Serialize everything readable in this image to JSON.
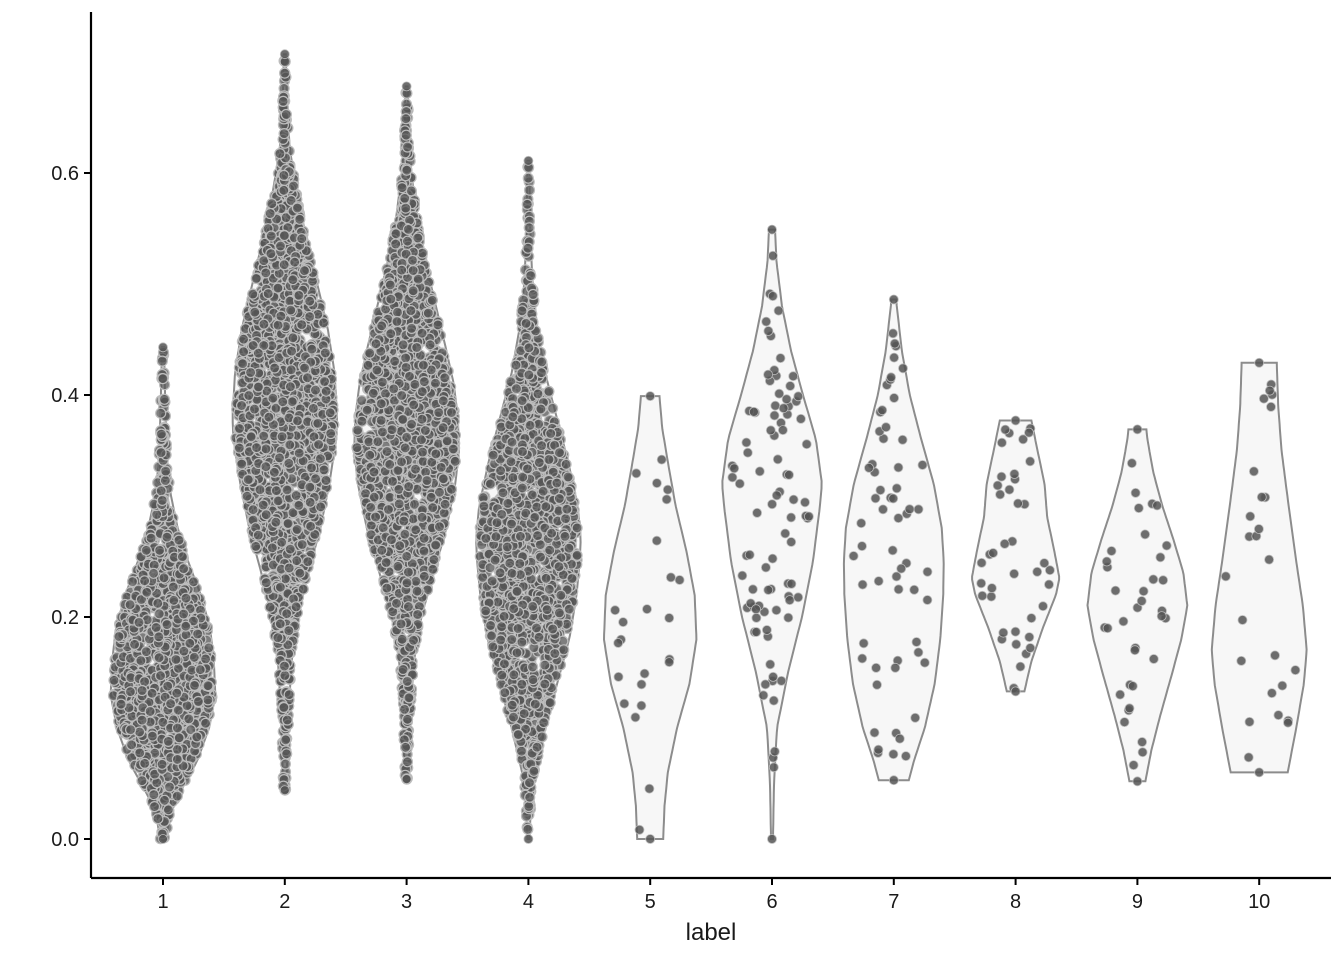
{
  "chart_data": {
    "type": "violin",
    "xlabel": "label",
    "ylabel": "",
    "categories": [
      "1",
      "2",
      "3",
      "4",
      "5",
      "6",
      "7",
      "8",
      "9",
      "10"
    ],
    "y_ticks": [
      "0.0",
      "0.2",
      "0.4",
      "0.6"
    ],
    "y_tick_values": [
      0.0,
      0.2,
      0.4,
      0.6
    ],
    "ylim": [
      -0.035,
      0.745
    ],
    "grid": false,
    "legend": "none",
    "colors": {
      "violin_fill": "#f7f7f7",
      "violin_stroke": "#8c8c8c",
      "point_fill": "#555555",
      "point_stroke": "#bdbdbd",
      "axis": "#000000"
    },
    "violins": [
      {
        "label": "1",
        "min": 0.0,
        "max": 0.443,
        "n": 1400,
        "max_half_width": 0.43,
        "profile": [
          [
            0.0,
            0.06
          ],
          [
            0.02,
            0.12
          ],
          [
            0.04,
            0.3
          ],
          [
            0.07,
            0.65
          ],
          [
            0.1,
            0.88
          ],
          [
            0.13,
            1.0
          ],
          [
            0.16,
            0.97
          ],
          [
            0.19,
            0.9
          ],
          [
            0.22,
            0.72
          ],
          [
            0.25,
            0.48
          ],
          [
            0.28,
            0.28
          ],
          [
            0.31,
            0.15
          ],
          [
            0.34,
            0.08
          ],
          [
            0.38,
            0.05
          ],
          [
            0.42,
            0.03
          ],
          [
            0.443,
            0.02
          ]
        ]
      },
      {
        "label": "2",
        "min": 0.044,
        "max": 0.707,
        "n": 2800,
        "max_half_width": 0.43,
        "profile": [
          [
            0.044,
            0.03
          ],
          [
            0.08,
            0.05
          ],
          [
            0.12,
            0.08
          ],
          [
            0.16,
            0.13
          ],
          [
            0.2,
            0.25
          ],
          [
            0.24,
            0.45
          ],
          [
            0.28,
            0.68
          ],
          [
            0.32,
            0.85
          ],
          [
            0.36,
            0.98
          ],
          [
            0.38,
            1.0
          ],
          [
            0.42,
            0.95
          ],
          [
            0.46,
            0.82
          ],
          [
            0.5,
            0.62
          ],
          [
            0.54,
            0.42
          ],
          [
            0.58,
            0.24
          ],
          [
            0.62,
            0.1
          ],
          [
            0.65,
            0.05
          ],
          [
            0.68,
            0.03
          ],
          [
            0.707,
            0.02
          ]
        ]
      },
      {
        "label": "3",
        "min": 0.054,
        "max": 0.678,
        "n": 2600,
        "max_half_width": 0.43,
        "profile": [
          [
            0.054,
            0.03
          ],
          [
            0.08,
            0.05
          ],
          [
            0.12,
            0.08
          ],
          [
            0.16,
            0.14
          ],
          [
            0.2,
            0.28
          ],
          [
            0.24,
            0.52
          ],
          [
            0.28,
            0.76
          ],
          [
            0.32,
            0.93
          ],
          [
            0.35,
            1.0
          ],
          [
            0.38,
            0.98
          ],
          [
            0.41,
            0.9
          ],
          [
            0.44,
            0.76
          ],
          [
            0.48,
            0.56
          ],
          [
            0.52,
            0.36
          ],
          [
            0.56,
            0.2
          ],
          [
            0.6,
            0.09
          ],
          [
            0.64,
            0.04
          ],
          [
            0.678,
            0.02
          ]
        ]
      },
      {
        "label": "4",
        "min": 0.0,
        "max": 0.611,
        "n": 1600,
        "max_half_width": 0.43,
        "profile": [
          [
            0.0,
            0.02
          ],
          [
            0.03,
            0.05
          ],
          [
            0.06,
            0.12
          ],
          [
            0.1,
            0.32
          ],
          [
            0.14,
            0.55
          ],
          [
            0.18,
            0.78
          ],
          [
            0.22,
            0.92
          ],
          [
            0.25,
            0.98
          ],
          [
            0.27,
            1.0
          ],
          [
            0.3,
            0.94
          ],
          [
            0.34,
            0.76
          ],
          [
            0.38,
            0.54
          ],
          [
            0.42,
            0.32
          ],
          [
            0.46,
            0.17
          ],
          [
            0.5,
            0.08
          ],
          [
            0.54,
            0.04
          ],
          [
            0.58,
            0.025
          ],
          [
            0.611,
            0.02
          ]
        ]
      },
      {
        "label": "5",
        "min": 0.0,
        "max": 0.399,
        "n": 24,
        "max_half_width": 0.38,
        "profile": [
          [
            0.0,
            0.28
          ],
          [
            0.03,
            0.31
          ],
          [
            0.06,
            0.38
          ],
          [
            0.1,
            0.58
          ],
          [
            0.14,
            0.85
          ],
          [
            0.18,
            1.0
          ],
          [
            0.22,
            0.96
          ],
          [
            0.26,
            0.78
          ],
          [
            0.3,
            0.55
          ],
          [
            0.34,
            0.38
          ],
          [
            0.37,
            0.26
          ],
          [
            0.399,
            0.2
          ]
        ]
      },
      {
        "label": "6",
        "min": 0.0,
        "max": 0.549,
        "n": 90,
        "max_half_width": 0.41,
        "profile": [
          [
            0.0,
            0.02
          ],
          [
            0.05,
            0.04
          ],
          [
            0.1,
            0.1
          ],
          [
            0.15,
            0.32
          ],
          [
            0.2,
            0.6
          ],
          [
            0.25,
            0.82
          ],
          [
            0.3,
            0.96
          ],
          [
            0.32,
            1.0
          ],
          [
            0.36,
            0.88
          ],
          [
            0.4,
            0.62
          ],
          [
            0.44,
            0.38
          ],
          [
            0.48,
            0.2
          ],
          [
            0.52,
            0.09
          ],
          [
            0.549,
            0.06
          ]
        ]
      },
      {
        "label": "7",
        "min": 0.053,
        "max": 0.486,
        "n": 60,
        "max_half_width": 0.41,
        "profile": [
          [
            0.053,
            0.3
          ],
          [
            0.07,
            0.4
          ],
          [
            0.1,
            0.62
          ],
          [
            0.14,
            0.82
          ],
          [
            0.18,
            0.93
          ],
          [
            0.22,
            0.99
          ],
          [
            0.25,
            1.0
          ],
          [
            0.28,
            0.96
          ],
          [
            0.32,
            0.8
          ],
          [
            0.36,
            0.55
          ],
          [
            0.4,
            0.32
          ],
          [
            0.44,
            0.16
          ],
          [
            0.48,
            0.06
          ],
          [
            0.486,
            0.05
          ]
        ]
      },
      {
        "label": "8",
        "min": 0.133,
        "max": 0.377,
        "n": 40,
        "max_half_width": 0.36,
        "profile": [
          [
            0.133,
            0.2
          ],
          [
            0.16,
            0.36
          ],
          [
            0.19,
            0.62
          ],
          [
            0.22,
            0.92
          ],
          [
            0.235,
            1.0
          ],
          [
            0.26,
            0.88
          ],
          [
            0.29,
            0.72
          ],
          [
            0.32,
            0.66
          ],
          [
            0.35,
            0.5
          ],
          [
            0.377,
            0.36
          ]
        ]
      },
      {
        "label": "9",
        "min": 0.052,
        "max": 0.369,
        "n": 35,
        "max_half_width": 0.41,
        "profile": [
          [
            0.052,
            0.16
          ],
          [
            0.08,
            0.28
          ],
          [
            0.11,
            0.45
          ],
          [
            0.15,
            0.7
          ],
          [
            0.18,
            0.88
          ],
          [
            0.21,
            1.0
          ],
          [
            0.24,
            0.92
          ],
          [
            0.27,
            0.72
          ],
          [
            0.3,
            0.5
          ],
          [
            0.33,
            0.32
          ],
          [
            0.36,
            0.2
          ],
          [
            0.369,
            0.18
          ]
        ]
      },
      {
        "label": "10",
        "min": 0.06,
        "max": 0.429,
        "n": 25,
        "max_half_width": 0.39,
        "profile": [
          [
            0.06,
            0.6
          ],
          [
            0.1,
            0.78
          ],
          [
            0.14,
            0.94
          ],
          [
            0.17,
            1.0
          ],
          [
            0.21,
            0.92
          ],
          [
            0.25,
            0.78
          ],
          [
            0.3,
            0.62
          ],
          [
            0.35,
            0.47
          ],
          [
            0.39,
            0.4
          ],
          [
            0.429,
            0.37
          ]
        ]
      }
    ]
  }
}
